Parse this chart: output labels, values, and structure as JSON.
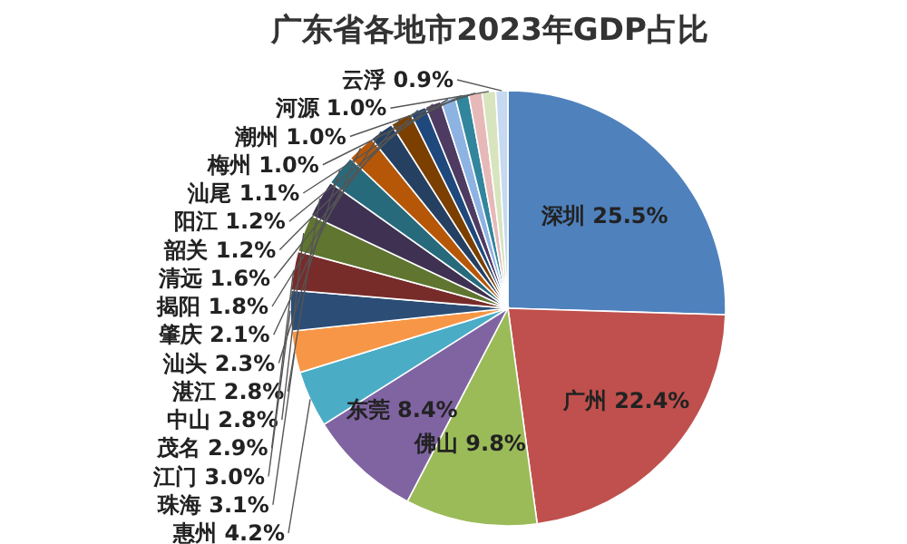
{
  "chart_data": {
    "type": "pie",
    "title": "广东省各地市2023年GDP占比",
    "categories": [
      "深圳",
      "广州",
      "佛山",
      "东莞",
      "惠州",
      "珠海",
      "江门",
      "茂名",
      "中山",
      "湛江",
      "汕头",
      "肇庆",
      "揭阳",
      "清远",
      "韶关",
      "阳江",
      "汕尾",
      "梅州",
      "潮州",
      "河源",
      "云浮"
    ],
    "values": [
      25.5,
      22.4,
      9.8,
      8.4,
      4.2,
      3.1,
      3.0,
      2.9,
      2.8,
      2.8,
      2.3,
      2.1,
      1.8,
      1.6,
      1.2,
      1.2,
      1.1,
      1.0,
      1.0,
      1.0,
      0.9
    ],
    "colors": [
      "#4f81bd",
      "#c0504d",
      "#9bbb59",
      "#8064a2",
      "#4bacc6",
      "#f79646",
      "#2c4d75",
      "#772c2a",
      "#5f7530",
      "#3f3151",
      "#276a7c",
      "#b65708",
      "#254061",
      "#7b3f00",
      "#1f497d",
      "#4e3b62",
      "#8db3e2",
      "#31859c",
      "#e6b9b8",
      "#d7e4bd",
      "#c6d9f1"
    ],
    "value_labels": [
      "25.5%",
      "22.4%",
      "9.8%",
      "8.4%",
      "4.2%",
      "3.1%",
      "3.0%",
      "2.9%",
      "2.8%",
      "2.8%",
      "2.3%",
      "2.1%",
      "1.8%",
      "1.6%",
      "1.2%",
      "1.2%",
      "1.1%",
      "1.0%",
      "1.0%",
      "1.0%",
      "0.9%"
    ]
  }
}
